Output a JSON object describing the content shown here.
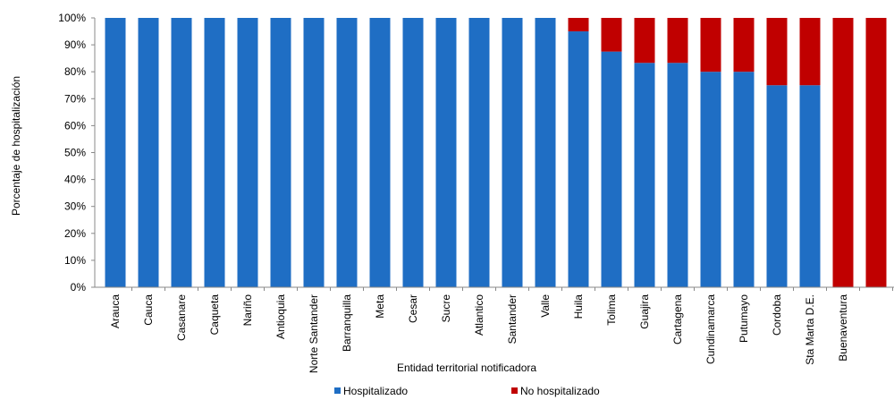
{
  "chart_data": {
    "type": "bar",
    "stacked": true,
    "percent": true,
    "xlabel": "Entidad territorial notificadora",
    "ylabel": "Porcentaje de hospitalización",
    "ylim": [
      0,
      100
    ],
    "yticks": [
      "0%",
      "10%",
      "20%",
      "30%",
      "40%",
      "50%",
      "60%",
      "70%",
      "80%",
      "90%",
      "100%"
    ],
    "grid": false,
    "legend_position": "bottom",
    "categories": [
      "Arauca",
      "Cauca",
      "Casanare",
      "Caqueta",
      "Nariño",
      "Antioquia",
      "Norte Santander",
      "Barranquilla",
      "Meta",
      "Cesar",
      "Sucre",
      "Atlantico",
      "Santander",
      "Valle",
      "Huila",
      "Tolima",
      "Guajira",
      "Cartagena",
      "Cundinamarca",
      "Putumayo",
      "Cordoba",
      "Sta Marta D.E.",
      "Buenaventura",
      ""
    ],
    "series": [
      {
        "name": "Hospitalizado",
        "color": "#1f6ec4",
        "values": [
          100,
          100,
          100,
          100,
          100,
          100,
          100,
          100,
          100,
          100,
          100,
          100,
          100,
          100,
          95,
          87.5,
          83.3,
          83.3,
          80,
          80,
          75,
          75,
          0,
          0
        ]
      },
      {
        "name": "No hospitalizado",
        "color": "#c00000",
        "values": [
          0,
          0,
          0,
          0,
          0,
          0,
          0,
          0,
          0,
          0,
          0,
          0,
          0,
          0,
          5,
          12.5,
          16.7,
          16.7,
          20,
          20,
          25,
          25,
          100,
          100
        ]
      }
    ]
  }
}
